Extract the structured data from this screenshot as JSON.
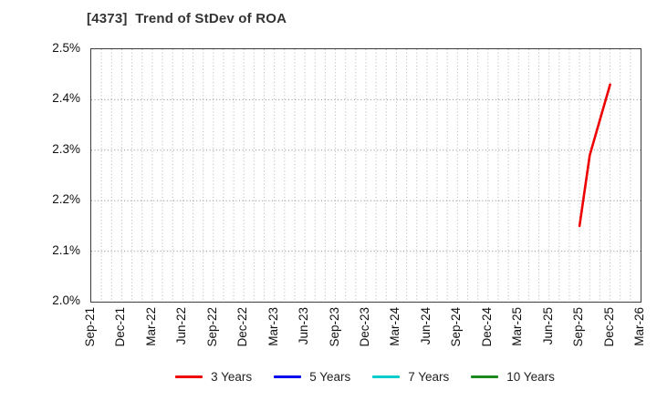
{
  "chart": {
    "title": "[4373]  Trend of StDev of ROA",
    "colors": {
      "line_3y": "#ee0000",
      "line_5y": "#0000ee",
      "line_7y": "#00cccc",
      "line_10y": "#1a8a1a",
      "grid_vertical": "#b5b5b5",
      "grid_horizontal": "#8c8c8c",
      "axis_border": "#3c3c3c",
      "title_text": "#333333",
      "tick_text": "#111111",
      "background": "#ffffff"
    }
  },
  "chart_data": {
    "type": "line",
    "title": "[4373]  Trend of StDev of ROA",
    "xlabel": "",
    "ylabel": "",
    "y_unit": "%",
    "ylim": [
      2.0,
      2.5
    ],
    "y_ticks": [
      "2.5%",
      "2.4%",
      "2.3%",
      "2.2%",
      "2.1%",
      "2.0%"
    ],
    "x_range": [
      "Sep-21",
      "Mar-26"
    ],
    "months_total": 54,
    "months_per_tick": 3,
    "x_tick_labels": [
      "Sep-21",
      "Dec-21",
      "Mar-22",
      "Jun-22",
      "Sep-22",
      "Dec-22",
      "Mar-23",
      "Jun-23",
      "Sep-23",
      "Dec-23",
      "Mar-24",
      "Jun-24",
      "Sep-24",
      "Dec-24",
      "Mar-25",
      "Jun-25",
      "Sep-25",
      "Dec-25",
      "Mar-26"
    ],
    "grid": true,
    "legend_position": "bottom",
    "series": [
      {
        "name": "3 Years",
        "color": "#ee0000",
        "points": [
          {
            "x": "Sep-25",
            "month_offset": 48,
            "y": 2.15
          },
          {
            "x": "Oct-25",
            "month_offset": 49,
            "y": 2.29
          },
          {
            "x": "Nov-25",
            "month_offset": 50,
            "y": 2.36
          },
          {
            "x": "Dec-25",
            "month_offset": 51,
            "y": 2.43
          }
        ]
      },
      {
        "name": "5 Years",
        "color": "#0000ee",
        "points": []
      },
      {
        "name": "7 Years",
        "color": "#00cccc",
        "points": []
      },
      {
        "name": "10 Years",
        "color": "#1a8a1a",
        "points": []
      }
    ]
  }
}
